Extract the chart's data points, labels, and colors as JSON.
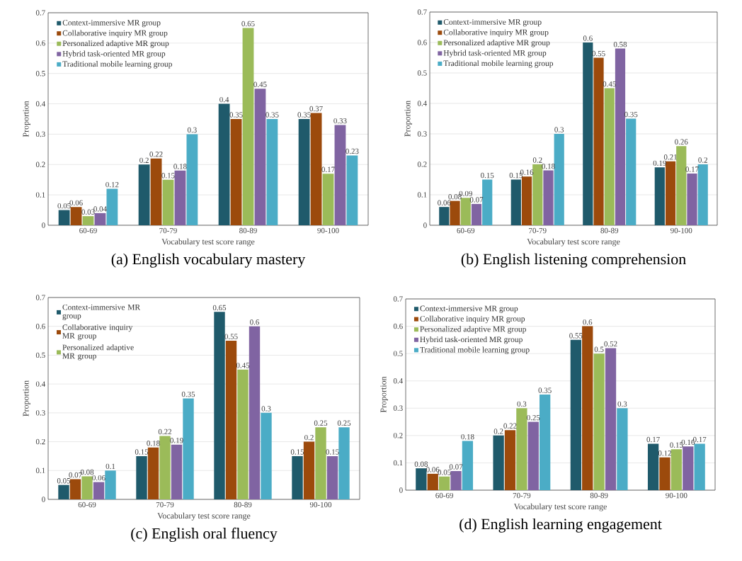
{
  "chart_data": [
    {
      "type": "bar",
      "title": "(a) English vocabulary mastery",
      "xlabel": "Vocabulary test score range",
      "ylabel": "Proportion",
      "categories": [
        "60-69",
        "70-79",
        "80-89",
        "90-100"
      ],
      "ylim": [
        0,
        0.7
      ],
      "yticks": [
        0,
        0.1,
        0.2,
        0.3,
        0.4,
        0.5,
        0.6,
        0.7
      ],
      "grid": "y",
      "legend": "top left",
      "data_labels": true,
      "series": [
        {
          "name": "Context-immersive MR group",
          "color": "#1f5a6b",
          "values": [
            0.05,
            0.2,
            0.4,
            0.35
          ]
        },
        {
          "name": "Collaborative inquiry MR group",
          "color": "#9c4a0c",
          "values": [
            0.06,
            0.22,
            0.35,
            0.37
          ]
        },
        {
          "name": "Personalized adaptive MR group",
          "color": "#9bbb59",
          "values": [
            0.03,
            0.15,
            0.65,
            0.17
          ]
        },
        {
          "name": "Hybrid task-oriented MR group",
          "color": "#8064a2",
          "values": [
            0.04,
            0.18,
            0.45,
            0.33
          ]
        },
        {
          "name": "Traditional mobile learning group",
          "color": "#4bacc6",
          "values": [
            0.12,
            0.3,
            0.35,
            0.23
          ]
        }
      ]
    },
    {
      "type": "bar",
      "title": "(b) English listening comprehension",
      "xlabel": "Vocabulary test score range",
      "ylabel": "Proportion",
      "categories": [
        "60-69",
        "70-79",
        "80-89",
        "90-100"
      ],
      "ylim": [
        0,
        0.7
      ],
      "yticks": [
        0,
        0.1,
        0.2,
        0.3,
        0.4,
        0.5,
        0.6,
        0.7
      ],
      "grid": "y",
      "legend": "top left",
      "data_labels": true,
      "series": [
        {
          "name": "Context-immersive MR group",
          "color": "#1f5a6b",
          "values": [
            0.06,
            0.15,
            0.6,
            0.19
          ]
        },
        {
          "name": "Collaborative inquiry MR group",
          "color": "#9c4a0c",
          "values": [
            0.08,
            0.16,
            0.55,
            0.21
          ]
        },
        {
          "name": "Personalized adaptive MR group",
          "color": "#9bbb59",
          "values": [
            0.09,
            0.2,
            0.45,
            0.26
          ]
        },
        {
          "name": "Hybrid task-oriented MR group",
          "color": "#8064a2",
          "values": [
            0.07,
            0.18,
            0.58,
            0.17
          ]
        },
        {
          "name": "Traditional mobile learning group",
          "color": "#4bacc6",
          "values": [
            0.15,
            0.3,
            0.35,
            0.2
          ]
        }
      ]
    },
    {
      "type": "bar",
      "title": "(c) English oral fluency",
      "xlabel": "Vocabulary test score range",
      "ylabel": "Proportion",
      "categories": [
        "60-69",
        "70-79",
        "80-89",
        "90-100"
      ],
      "ylim": [
        0,
        0.7
      ],
      "yticks": [
        0,
        0.1,
        0.2,
        0.3,
        0.4,
        0.5,
        0.6,
        0.7
      ],
      "grid": "y",
      "legend": "top left",
      "data_labels": true,
      "series": [
        {
          "name": "Context-immersive MR group",
          "color": "#1f5a6b",
          "values": [
            0.05,
            0.15,
            0.65,
            0.15
          ]
        },
        {
          "name": "Collaborative inquiry MR group",
          "color": "#9c4a0c",
          "values": [
            0.07,
            0.18,
            0.55,
            0.2
          ]
        },
        {
          "name": "Personalized adaptive MR group",
          "color": "#9bbb59",
          "values": [
            0.08,
            0.22,
            0.45,
            0.25
          ]
        },
        {
          "color": "#8064a2",
          "values": [
            0.06,
            0.19,
            0.6,
            0.15
          ]
        },
        {
          "color": "#4bacc6",
          "values": [
            0.1,
            0.35,
            0.3,
            0.25
          ]
        }
      ]
    },
    {
      "type": "bar",
      "title": "(d) English learning engagement",
      "xlabel": "Vocabulary test score range",
      "ylabel": "Proportion",
      "categories": [
        "60-69",
        "70-79",
        "80-89",
        "90-100"
      ],
      "ylim": [
        0,
        0.7
      ],
      "yticks": [
        0,
        0.1,
        0.2,
        0.3,
        0.4,
        0.5,
        0.6,
        0.7
      ],
      "grid": "y",
      "legend": "top left",
      "data_labels": true,
      "series": [
        {
          "name": "Context-immersive MR group",
          "color": "#1f5a6b",
          "values": [
            0.08,
            0.2,
            0.55,
            0.17
          ]
        },
        {
          "name": "Collaborative inquiry MR group",
          "color": "#9c4a0c",
          "values": [
            0.06,
            0.22,
            0.6,
            0.12
          ]
        },
        {
          "name": "Personalized adaptive MR group",
          "color": "#9bbb59",
          "values": [
            0.05,
            0.3,
            0.5,
            0.15
          ]
        },
        {
          "name": "Hybrid task-oriented MR group",
          "color": "#8064a2",
          "values": [
            0.07,
            0.25,
            0.52,
            0.16
          ]
        },
        {
          "name": "Traditional mobile learning group",
          "color": "#4bacc6",
          "values": [
            0.18,
            0.35,
            0.3,
            0.17
          ]
        }
      ]
    }
  ]
}
